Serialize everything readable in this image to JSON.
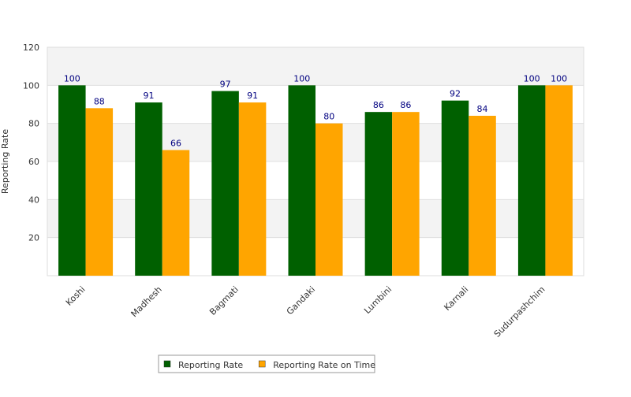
{
  "chart_data": {
    "type": "bar",
    "y_label": "Reporting Rate",
    "categories": [
      "Koshi",
      "Madhesh",
      "Bagmati",
      "Gandaki",
      "Lumbini",
      "Karnali",
      "Sudurpashchim"
    ],
    "series": [
      {
        "name": "Reporting Rate",
        "color": "#006000",
        "values": [
          100,
          91,
          97,
          100,
          86,
          92,
          100
        ]
      },
      {
        "name": "Reporting Rate on Time",
        "color": "#ffa500",
        "values": [
          88,
          66,
          91,
          80,
          86,
          84,
          100
        ]
      }
    ],
    "ylim": [
      0,
      120
    ],
    "yticks": [
      20,
      40,
      60,
      80,
      100,
      120
    ],
    "grid": true,
    "legend": "bottom"
  }
}
